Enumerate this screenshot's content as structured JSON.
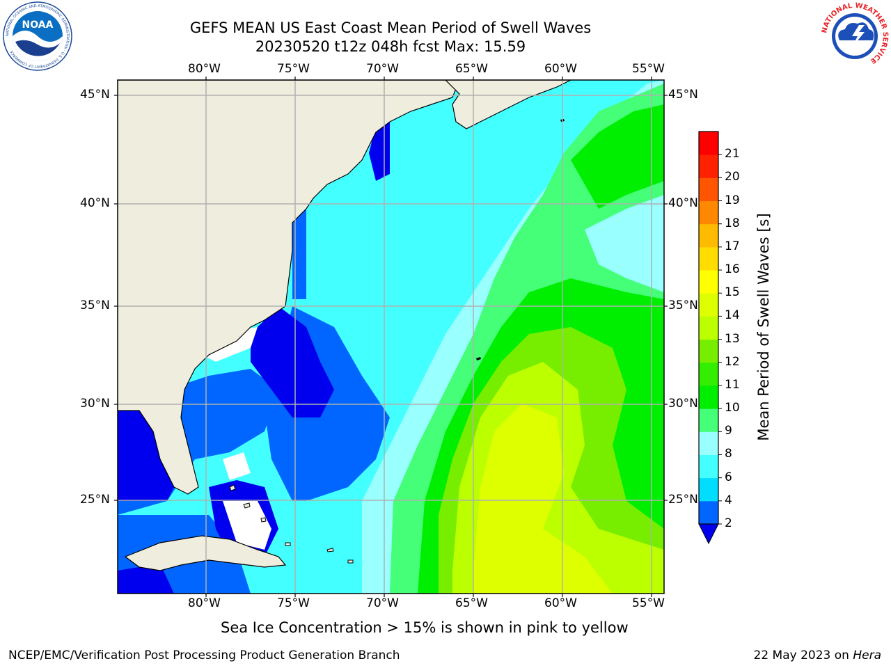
{
  "header": {
    "title_line1": "GEFS MEAN US East Coast Mean Period of Swell Waves",
    "title_line2": "20230520 t12z 048h fcst   Max: 15.59"
  },
  "logos": {
    "noaa_text": "NOAA",
    "noaa_ring_text": "NATIONAL OCEANIC AND ATMOSPHERIC ADMINISTRATION · U.S. DEPARTMENT OF COMMERCE",
    "nws_ring_text": "NATIONAL WEATHER SERVICE"
  },
  "map": {
    "lon_labels": [
      "80°W",
      "75°W",
      "70°W",
      "65°W",
      "60°W",
      "55°W"
    ],
    "lat_labels": [
      "45°N",
      "40°N",
      "35°N",
      "30°N",
      "25°N"
    ],
    "land_color": "#efedde",
    "grid_color": "#b0b0b0"
  },
  "colorbar": {
    "title": "Mean Period of Swell Waves [s]",
    "ticks": [
      "2",
      "4",
      "6",
      "8",
      "9",
      "10",
      "11",
      "12",
      "13",
      "14",
      "15",
      "16",
      "17",
      "18",
      "19",
      "20",
      "21"
    ],
    "colors": [
      "#0066ff",
      "#00ddff",
      "#44ffff",
      "#99ffff",
      "#44ff77",
      "#00ee00",
      "#33ee00",
      "#77ee00",
      "#bbff00",
      "#ddff00",
      "#ffff00",
      "#ffdd00",
      "#ffbb00",
      "#ff8800",
      "#ff5500",
      "#ff2200",
      "#ff0000"
    ],
    "extend_color": "#0000ee"
  },
  "notes": {
    "ice_note": "Sea Ice Concentration > 15% is shown in pink to yellow"
  },
  "footer": {
    "left": "NCEP/EMC/Verification Post Processing Product Generation Branch",
    "right_date": "22 May 2023 on",
    "right_host": "Hera"
  }
}
